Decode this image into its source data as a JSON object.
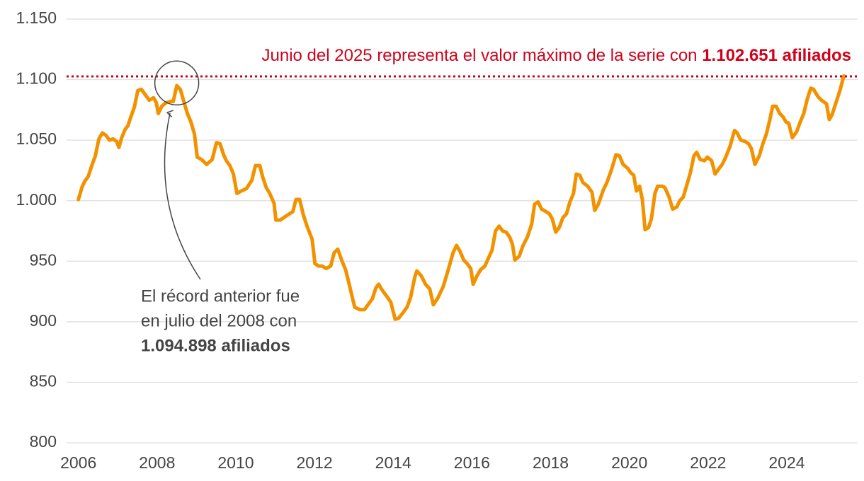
{
  "chart_data": {
    "type": "line",
    "series": [
      {
        "color": "#f39200",
        "x": [
          2006.0,
          2006.09,
          2006.16,
          2006.25,
          2006.34,
          2006.43,
          2006.52,
          2006.61,
          2006.7,
          2006.79,
          2006.88,
          2006.97,
          2007.03,
          2007.1,
          2007.19,
          2007.26,
          2007.33,
          2007.42,
          2007.51,
          2007.6,
          2007.69,
          2007.8,
          2007.91,
          2007.98,
          2008.03,
          2008.12,
          2008.23,
          2008.34,
          2008.41,
          2008.5,
          2008.59,
          2008.68,
          2008.77,
          2008.86,
          2008.95,
          2009.02,
          2009.13,
          2009.26,
          2009.4,
          2009.51,
          2009.6,
          2009.69,
          2009.76,
          2009.85,
          2009.94,
          2010.03,
          2010.14,
          2010.27,
          2010.41,
          2010.5,
          2010.61,
          2010.68,
          2010.77,
          2010.86,
          2010.97,
          2011.02,
          2011.13,
          2011.26,
          2011.36,
          2011.45,
          2011.53,
          2011.62,
          2011.72,
          2011.81,
          2011.94,
          2012.01,
          2012.1,
          2012.19,
          2012.3,
          2012.41,
          2012.5,
          2012.59,
          2012.7,
          2012.79,
          2012.91,
          2013.02,
          2013.15,
          2013.27,
          2013.38,
          2013.47,
          2013.56,
          2013.63,
          2013.7,
          2013.79,
          2013.88,
          2013.94,
          2014.05,
          2014.14,
          2014.26,
          2014.35,
          2014.44,
          2014.55,
          2014.6,
          2014.71,
          2014.82,
          2014.93,
          2015.02,
          2015.14,
          2015.27,
          2015.4,
          2015.52,
          2015.61,
          2015.7,
          2015.79,
          2015.88,
          2015.97,
          2016.03,
          2016.13,
          2016.22,
          2016.33,
          2016.44,
          2016.51,
          2016.6,
          2016.69,
          2016.78,
          2016.87,
          2016.96,
          2017.03,
          2017.09,
          2017.2,
          2017.3,
          2017.41,
          2017.52,
          2017.59,
          2017.68,
          2017.77,
          2017.88,
          2017.97,
          2018.04,
          2018.13,
          2018.22,
          2018.31,
          2018.4,
          2018.49,
          2018.58,
          2018.65,
          2018.74,
          2018.82,
          2018.94,
          2019.05,
          2019.12,
          2019.21,
          2019.34,
          2019.43,
          2019.54,
          2019.66,
          2019.75,
          2019.84,
          2019.95,
          2020.04,
          2020.11,
          2020.18,
          2020.26,
          2020.33,
          2020.4,
          2020.49,
          2020.56,
          2020.65,
          2020.72,
          2020.83,
          2020.9,
          2021.01,
          2021.1,
          2021.21,
          2021.28,
          2021.37,
          2021.46,
          2021.55,
          2021.64,
          2021.71,
          2021.8,
          2021.91,
          2021.98,
          2022.09,
          2022.18,
          2022.29,
          2022.36,
          2022.45,
          2022.56,
          2022.67,
          2022.74,
          2022.83,
          2022.94,
          2023.03,
          2023.1,
          2023.19,
          2023.3,
          2023.39,
          2023.48,
          2023.57,
          2023.64,
          2023.73,
          2023.82,
          2023.91,
          2023.98,
          2024.05,
          2024.14,
          2024.25,
          2024.34,
          2024.43,
          2024.52,
          2024.61,
          2024.68,
          2024.79,
          2024.88,
          2025.01,
          2025.08,
          2025.15,
          2025.26,
          2025.35,
          2025.45
        ],
        "values": [
          1001,
          1011,
          1016,
          1020,
          1029,
          1037,
          1051,
          1056,
          1054,
          1050,
          1051,
          1049,
          1044,
          1052,
          1059,
          1062,
          1069,
          1077,
          1091,
          1092,
          1088,
          1083,
          1085,
          1081,
          1072,
          1078,
          1081,
          1082,
          1082,
          1095,
          1092,
          1082,
          1072,
          1065,
          1055,
          1036,
          1034,
          1030,
          1034,
          1048,
          1047,
          1038,
          1033,
          1029,
          1022,
          1006,
          1008,
          1010,
          1017,
          1029,
          1029,
          1020,
          1011,
          1006,
          998,
          984,
          984,
          987,
          989,
          991,
          1001,
          1001,
          988,
          979,
          968,
          948,
          946,
          946,
          944,
          946,
          957,
          960,
          950,
          943,
          927,
          912,
          910,
          910,
          915,
          919,
          928,
          931,
          927,
          923,
          919,
          916,
          902,
          903,
          908,
          912,
          920,
          937,
          942,
          938,
          931,
          927,
          914,
          920,
          929,
          943,
          957,
          963,
          958,
          951,
          948,
          944,
          931,
          938,
          943,
          946,
          954,
          959,
          975,
          979,
          975,
          974,
          970,
          964,
          951,
          954,
          963,
          970,
          981,
          997,
          999,
          993,
          991,
          989,
          985,
          974,
          978,
          986,
          989,
          999,
          1006,
          1022,
          1021,
          1015,
          1012,
          1007,
          992,
          997,
          1009,
          1015,
          1025,
          1038,
          1037,
          1030,
          1027,
          1023,
          1021,
          1008,
          1012,
          1001,
          976,
          978,
          985,
          1006,
          1012,
          1012,
          1011,
          1003,
          993,
          995,
          1000,
          1003,
          1013,
          1023,
          1037,
          1040,
          1034,
          1033,
          1036,
          1033,
          1022,
          1027,
          1030,
          1036,
          1045,
          1058,
          1056,
          1050,
          1049,
          1047,
          1043,
          1030,
          1037,
          1047,
          1055,
          1067,
          1078,
          1078,
          1072,
          1069,
          1065,
          1064,
          1052,
          1057,
          1065,
          1072,
          1084,
          1093,
          1092,
          1086,
          1083,
          1080,
          1067,
          1071,
          1082,
          1091,
          1103
        ]
      }
    ],
    "xlim": [
      2005.7,
      2025.8
    ],
    "xticks": [
      2006,
      2008,
      2010,
      2012,
      2014,
      2016,
      2018,
      2020,
      2022,
      2024
    ],
    "ylim": [
      800,
      1150
    ],
    "yticks": [
      800,
      850,
      900,
      950,
      {
        "value": 1000,
        "label": "1.000"
      },
      {
        "value": 1050,
        "label": "1.050"
      },
      {
        "value": 1100,
        "label": "1.100"
      },
      {
        "value": 1150,
        "label": "1.150"
      }
    ],
    "grid": true,
    "reference_line": {
      "value": 1102.651,
      "color": "#d0021b",
      "text": "Junio del 2025 representa el valor máximo de la serie con",
      "bold": "1.102.651 afiliados"
    },
    "record": {
      "value": 1094.898,
      "lines": [
        "El récord anterior fue",
        "en julio del 2008 con"
      ],
      "bold": "1.094.898 afiliados"
    }
  }
}
